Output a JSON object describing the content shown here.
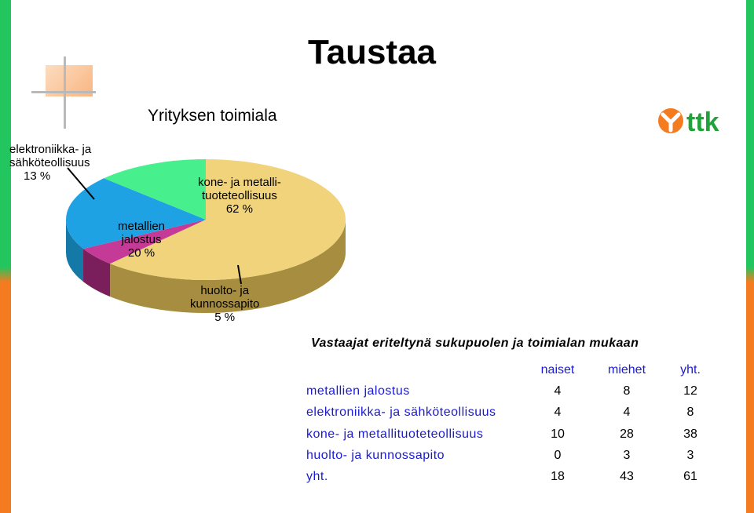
{
  "slide": {
    "title": "Taustaa",
    "logo_text": "ttk"
  },
  "colors": {
    "green_bar": "#22c55e",
    "orange_bar": "#f47b1f",
    "logo_orange": "#f47b1f",
    "logo_green": "#22a23a"
  },
  "chart_data": {
    "type": "pie",
    "title": "Yrityksen toimiala",
    "slices": [
      {
        "label": "kone- ja metalli-tuoteteollisuus",
        "label_lines": [
          "kone- ja metalli-",
          "tuoteteollisuus",
          "62 %"
        ],
        "value": 62,
        "color": "#f0d37a",
        "side": "#a68d3f"
      },
      {
        "label": "huolto- ja kunnossapito",
        "label_lines": [
          "huolto- ja",
          "kunnossapito",
          "5 %"
        ],
        "value": 5,
        "color": "#c43a96",
        "side": "#7a1f5c"
      },
      {
        "label": "metallien jalostus",
        "label_lines": [
          "metallien",
          "jalostus",
          "20 %"
        ],
        "value": 20,
        "color": "#1ea2e3",
        "side": "#1579a8"
      },
      {
        "label": "elektroniikka- ja sähköteollisuus",
        "label_lines": [
          "elektroniikka- ja",
          "sähköteollisuus",
          "13 %"
        ],
        "value": 13,
        "color": "#47f08c",
        "side": "#2aa860"
      }
    ]
  },
  "table": {
    "title": "Vastaajat eriteltynä sukupuolen ja toimialan mukaan",
    "columns": [
      "naiset",
      "miehet",
      "yht."
    ],
    "rows": [
      {
        "label": "metallien jalostus",
        "values": [
          "4",
          "8",
          "12"
        ]
      },
      {
        "label": "elektroniikka- ja sähköteollisuus",
        "values": [
          "4",
          "4",
          "8"
        ]
      },
      {
        "label": "kone- ja metallituoteteollisuus",
        "values": [
          "10",
          "28",
          "38"
        ]
      },
      {
        "label": "huolto- ja kunnossapito",
        "values": [
          "0",
          "3",
          "3"
        ]
      },
      {
        "label": "yht.",
        "values": [
          "18",
          "43",
          "61"
        ]
      }
    ]
  }
}
